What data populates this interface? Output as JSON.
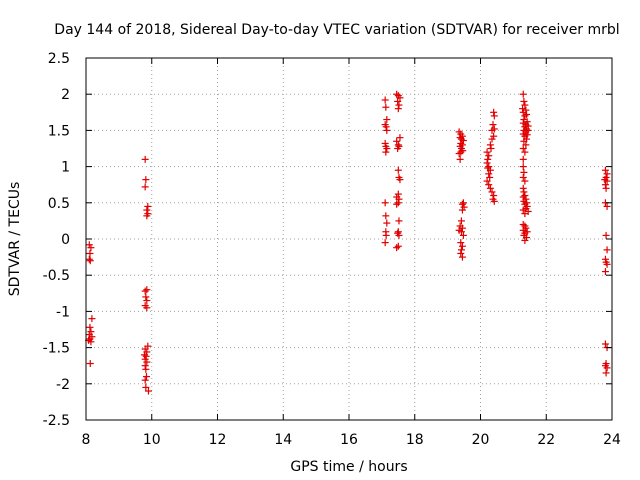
{
  "chart_data": {
    "type": "scatter",
    "title": "Day 144 of 2018, Sidereal Day-to-day VTEC variation (SDTVAR) for receiver mrbl",
    "xlabel": "GPS time / hours",
    "ylabel": "SDTVAR / TECUs",
    "xlim": [
      8,
      24
    ],
    "ylim": [
      -2.5,
      2.5
    ],
    "xticks": [
      8,
      10,
      12,
      14,
      16,
      18,
      20,
      22,
      24
    ],
    "yticks": [
      -2.5,
      -2,
      -1.5,
      -1,
      -0.5,
      0,
      0.5,
      1,
      1.5,
      2,
      2.5
    ],
    "xtick_labels": [
      "8",
      "10",
      "12",
      "14",
      "16",
      "18",
      "20",
      "22",
      "24"
    ],
    "ytick_labels": [
      "-2.5",
      "-2",
      "-1.5",
      "-1",
      "-0.5",
      "0",
      "0.5",
      "1",
      "1.5",
      "2",
      "2.5"
    ],
    "grid": true,
    "marker": "+",
    "color": "#e00000",
    "series": [
      {
        "name": "SDTVAR",
        "points": [
          [
            8.1,
            -0.08
          ],
          [
            8.15,
            -0.12
          ],
          [
            8.12,
            -0.2
          ],
          [
            8.1,
            -0.28
          ],
          [
            8.13,
            -0.3
          ],
          [
            8.18,
            -1.1
          ],
          [
            8.12,
            -1.22
          ],
          [
            8.15,
            -1.28
          ],
          [
            8.1,
            -1.32
          ],
          [
            8.18,
            -1.35
          ],
          [
            8.12,
            -1.38
          ],
          [
            8.08,
            -1.4
          ],
          [
            8.15,
            -1.42
          ],
          [
            8.13,
            -1.72
          ],
          [
            9.8,
            1.1
          ],
          [
            9.82,
            0.82
          ],
          [
            9.8,
            0.72
          ],
          [
            9.88,
            0.45
          ],
          [
            9.85,
            0.4
          ],
          [
            9.88,
            0.35
          ],
          [
            9.85,
            0.32
          ],
          [
            9.85,
            -0.7
          ],
          [
            9.8,
            -0.72
          ],
          [
            9.82,
            -0.8
          ],
          [
            9.85,
            -0.85
          ],
          [
            9.8,
            -0.92
          ],
          [
            9.85,
            -0.95
          ],
          [
            9.88,
            -1.48
          ],
          [
            9.8,
            -1.52
          ],
          [
            9.85,
            -1.56
          ],
          [
            9.78,
            -1.6
          ],
          [
            9.83,
            -1.62
          ],
          [
            9.8,
            -1.66
          ],
          [
            9.85,
            -1.7
          ],
          [
            9.8,
            -1.75
          ],
          [
            9.82,
            -1.8
          ],
          [
            9.84,
            -1.9
          ],
          [
            9.8,
            -1.95
          ],
          [
            9.82,
            -2.05
          ],
          [
            9.9,
            -2.1
          ],
          [
            17.1,
            1.92
          ],
          [
            17.12,
            1.82
          ],
          [
            17.15,
            1.65
          ],
          [
            17.1,
            1.58
          ],
          [
            17.13,
            1.55
          ],
          [
            17.15,
            1.5
          ],
          [
            17.1,
            1.32
          ],
          [
            17.12,
            1.28
          ],
          [
            17.15,
            1.25
          ],
          [
            17.12,
            1.2
          ],
          [
            17.1,
            0.5
          ],
          [
            17.12,
            0.32
          ],
          [
            17.15,
            0.22
          ],
          [
            17.12,
            0.1
          ],
          [
            17.13,
            0.05
          ],
          [
            17.1,
            -0.05
          ],
          [
            17.45,
            2.0
          ],
          [
            17.5,
            1.98
          ],
          [
            17.55,
            1.95
          ],
          [
            17.48,
            1.9
          ],
          [
            17.52,
            1.85
          ],
          [
            17.5,
            1.8
          ],
          [
            17.55,
            1.4
          ],
          [
            17.45,
            1.35
          ],
          [
            17.5,
            1.3
          ],
          [
            17.52,
            1.28
          ],
          [
            17.48,
            1.25
          ],
          [
            17.5,
            0.95
          ],
          [
            17.52,
            0.85
          ],
          [
            17.55,
            0.82
          ],
          [
            17.5,
            0.62
          ],
          [
            17.45,
            0.58
          ],
          [
            17.52,
            0.55
          ],
          [
            17.5,
            0.5
          ],
          [
            17.45,
            0.48
          ],
          [
            17.52,
            0.25
          ],
          [
            17.5,
            0.1
          ],
          [
            17.48,
            0.08
          ],
          [
            17.52,
            0.05
          ],
          [
            17.5,
            -0.1
          ],
          [
            17.45,
            -0.12
          ],
          [
            19.35,
            1.48
          ],
          [
            19.4,
            1.45
          ],
          [
            19.45,
            1.42
          ],
          [
            19.38,
            1.4
          ],
          [
            19.42,
            1.38
          ],
          [
            19.48,
            1.36
          ],
          [
            19.4,
            1.32
          ],
          [
            19.45,
            1.3
          ],
          [
            19.38,
            1.28
          ],
          [
            19.42,
            1.25
          ],
          [
            19.46,
            1.22
          ],
          [
            19.4,
            1.2
          ],
          [
            19.35,
            1.18
          ],
          [
            19.38,
            1.1
          ],
          [
            19.48,
            0.5
          ],
          [
            19.45,
            0.48
          ],
          [
            19.5,
            0.44
          ],
          [
            19.45,
            0.4
          ],
          [
            19.42,
            0.25
          ],
          [
            19.38,
            0.18
          ],
          [
            19.45,
            0.15
          ],
          [
            19.35,
            0.12
          ],
          [
            19.42,
            0.1
          ],
          [
            19.48,
            0.05
          ],
          [
            19.4,
            -0.05
          ],
          [
            19.45,
            -0.1
          ],
          [
            19.42,
            -0.15
          ],
          [
            19.4,
            -0.2
          ],
          [
            19.45,
            -0.25
          ],
          [
            20.4,
            1.75
          ],
          [
            20.42,
            1.7
          ],
          [
            20.38,
            1.58
          ],
          [
            20.42,
            1.52
          ],
          [
            20.35,
            1.5
          ],
          [
            20.4,
            1.42
          ],
          [
            20.35,
            1.38
          ],
          [
            20.3,
            1.3
          ],
          [
            20.32,
            1.25
          ],
          [
            20.2,
            1.2
          ],
          [
            20.25,
            1.15
          ],
          [
            20.22,
            1.1
          ],
          [
            20.2,
            1.05
          ],
          [
            20.25,
            1.0
          ],
          [
            20.22,
            0.98
          ],
          [
            20.3,
            0.95
          ],
          [
            20.25,
            0.9
          ],
          [
            20.28,
            0.85
          ],
          [
            20.2,
            0.8
          ],
          [
            20.25,
            0.75
          ],
          [
            20.3,
            0.7
          ],
          [
            20.35,
            0.65
          ],
          [
            20.4,
            0.6
          ],
          [
            20.38,
            0.55
          ],
          [
            20.42,
            0.52
          ],
          [
            21.3,
            2.0
          ],
          [
            21.32,
            1.9
          ],
          [
            21.35,
            1.85
          ],
          [
            21.28,
            1.8
          ],
          [
            21.38,
            1.78
          ],
          [
            21.3,
            1.75
          ],
          [
            21.4,
            1.72
          ],
          [
            21.35,
            1.7
          ],
          [
            21.32,
            1.65
          ],
          [
            21.42,
            1.62
          ],
          [
            21.3,
            1.6
          ],
          [
            21.38,
            1.58
          ],
          [
            21.45,
            1.56
          ],
          [
            21.35,
            1.55
          ],
          [
            21.4,
            1.52
          ],
          [
            21.32,
            1.5
          ],
          [
            21.45,
            1.5
          ],
          [
            21.38,
            1.48
          ],
          [
            21.3,
            1.45
          ],
          [
            21.42,
            1.44
          ],
          [
            21.35,
            1.42
          ],
          [
            21.4,
            1.38
          ],
          [
            21.32,
            1.35
          ],
          [
            21.38,
            1.3
          ],
          [
            21.3,
            1.25
          ],
          [
            21.35,
            1.2
          ],
          [
            21.3,
            1.1
          ],
          [
            21.3,
            1.0
          ],
          [
            21.32,
            0.92
          ],
          [
            21.3,
            0.85
          ],
          [
            21.35,
            0.8
          ],
          [
            21.3,
            0.7
          ],
          [
            21.32,
            0.65
          ],
          [
            21.35,
            0.6
          ],
          [
            21.3,
            0.58
          ],
          [
            21.38,
            0.55
          ],
          [
            21.32,
            0.52
          ],
          [
            21.4,
            0.5
          ],
          [
            21.35,
            0.48
          ],
          [
            21.42,
            0.45
          ],
          [
            21.38,
            0.42
          ],
          [
            21.3,
            0.4
          ],
          [
            21.45,
            0.38
          ],
          [
            21.35,
            0.35
          ],
          [
            21.3,
            0.2
          ],
          [
            21.35,
            0.18
          ],
          [
            21.38,
            0.15
          ],
          [
            21.3,
            0.12
          ],
          [
            21.42,
            0.1
          ],
          [
            21.35,
            0.08
          ],
          [
            21.32,
            0.05
          ],
          [
            21.4,
            0.02
          ],
          [
            21.35,
            -0.02
          ],
          [
            23.8,
            0.95
          ],
          [
            23.85,
            0.9
          ],
          [
            23.82,
            0.85
          ],
          [
            23.78,
            0.82
          ],
          [
            23.85,
            0.8
          ],
          [
            23.8,
            0.75
          ],
          [
            23.82,
            0.7
          ],
          [
            23.8,
            0.5
          ],
          [
            23.85,
            0.45
          ],
          [
            23.82,
            0.05
          ],
          [
            23.85,
            -0.15
          ],
          [
            23.8,
            -0.28
          ],
          [
            23.82,
            -0.32
          ],
          [
            23.85,
            -0.35
          ],
          [
            23.8,
            -0.45
          ],
          [
            23.8,
            -1.45
          ],
          [
            23.85,
            -1.5
          ],
          [
            23.82,
            -1.72
          ],
          [
            23.8,
            -1.75
          ],
          [
            23.85,
            -1.78
          ],
          [
            23.82,
            -1.85
          ]
        ]
      }
    ]
  }
}
